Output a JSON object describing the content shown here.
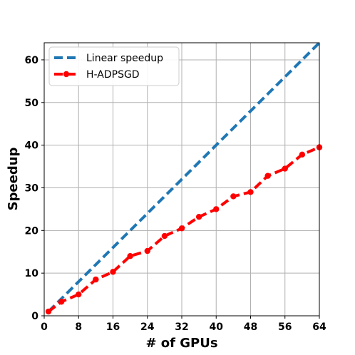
{
  "chart_data": {
    "type": "line",
    "title": "",
    "xlabel": "# of GPUs",
    "ylabel": "Speedup",
    "xlim": [
      0,
      64
    ],
    "ylim": [
      0,
      64
    ],
    "xticks": [
      0,
      8,
      16,
      24,
      32,
      40,
      48,
      56,
      64
    ],
    "yticks": [
      0,
      10,
      20,
      30,
      40,
      50,
      60
    ],
    "grid": true,
    "legend_position": "top-left",
    "series": [
      {
        "name": "Linear speedup",
        "color": "#1f77b4",
        "style": "dashed",
        "markers": false,
        "x": [
          1,
          64
        ],
        "y": [
          1,
          64
        ]
      },
      {
        "name": "H-ADPSGD",
        "color": "#ff0000",
        "style": "dashed",
        "markers": true,
        "x": [
          1,
          4,
          8,
          12,
          16,
          20,
          24,
          28,
          32,
          36,
          40,
          44,
          48,
          52,
          56,
          60,
          64
        ],
        "y": [
          1,
          3.3,
          5,
          8.5,
          10.3,
          14,
          15.2,
          18.7,
          20.5,
          23.2,
          25,
          28,
          29,
          32.8,
          34.5,
          37.8,
          39.5
        ]
      }
    ]
  }
}
